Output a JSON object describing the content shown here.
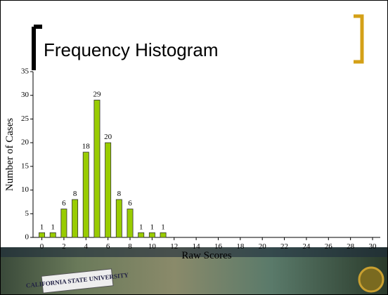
{
  "chart_data": {
    "type": "bar",
    "title": "Frequency Histogram",
    "x_label": "Raw Scores",
    "y_label": "Number of Cases",
    "x": [
      0,
      1,
      2,
      3,
      4,
      5,
      6,
      7,
      8,
      9,
      10,
      11
    ],
    "values": [
      1,
      1,
      6,
      8,
      18,
      29,
      20,
      8,
      6,
      1,
      1,
      1
    ],
    "color": "#99cc00",
    "xlim": [
      -0.8,
      30.7
    ],
    "xticks": [
      0,
      2,
      4,
      6,
      8,
      10,
      12,
      14,
      16,
      18,
      20,
      22,
      24,
      26,
      28,
      30
    ],
    "ylim": [
      0,
      35
    ],
    "yticks": [
      0,
      5,
      10,
      15,
      20,
      25,
      30,
      35
    ]
  },
  "footer": {
    "logo_text": "CALIFORNIA STATE UNIVERSITY"
  }
}
